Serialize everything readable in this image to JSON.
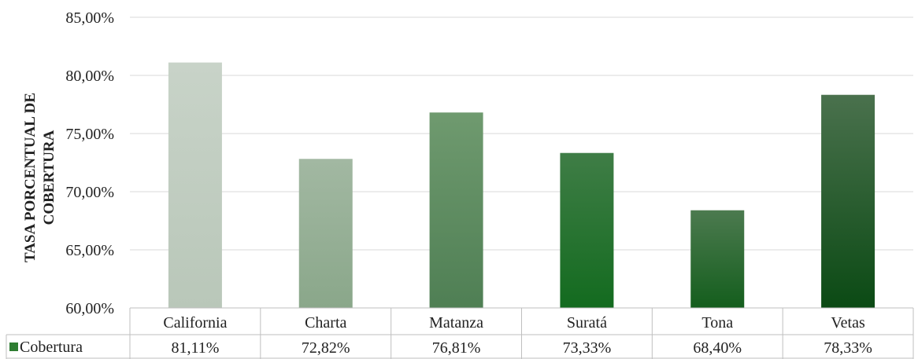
{
  "chart_data": {
    "type": "bar",
    "title": "",
    "ylabel_lines": [
      "TASA PORCENTUAL DE",
      "COBERTURA"
    ],
    "xlabel": "",
    "categories": [
      "California",
      "Charta",
      "Matanza",
      "Suratá",
      "Tona",
      "Vetas"
    ],
    "series": [
      {
        "name": "Cobertura",
        "values": [
          81.11,
          72.82,
          76.81,
          73.33,
          68.4,
          78.33
        ],
        "value_labels": [
          "81,11%",
          "72,82%",
          "76,81%",
          "73,33%",
          "68,40%",
          "78,33%"
        ]
      }
    ],
    "ylim": [
      60,
      85
    ],
    "yticks": [
      60,
      65,
      70,
      75,
      80,
      85
    ],
    "ytick_labels": [
      "60,00%",
      "65,00%",
      "70,00%",
      "75,00%",
      "80,00%",
      "85,00%"
    ],
    "grid": true,
    "legend": "data-table",
    "legend_color": "#2e7d32",
    "bar_gradients": [
      [
        "#c8d3c8",
        "#b9c7b9"
      ],
      [
        "#a2b8a2",
        "#8aa78a"
      ],
      [
        "#6f9a6f",
        "#4f7f54"
      ],
      [
        "#3f7d46",
        "#136b1f"
      ],
      [
        "#4c7a4f",
        "#145e1d"
      ],
      [
        "#4a714d",
        "#0b4a14"
      ]
    ]
  }
}
